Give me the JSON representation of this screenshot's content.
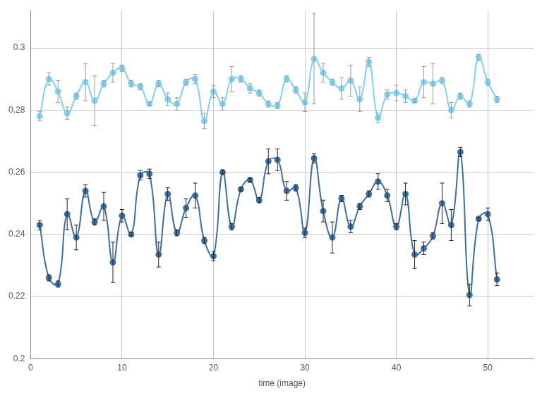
{
  "chart_data": {
    "type": "line",
    "x_label": "time (image)",
    "x": [
      1,
      2,
      3,
      4,
      5,
      6,
      7,
      8,
      9,
      10,
      11,
      12,
      13,
      14,
      15,
      16,
      17,
      18,
      19,
      20,
      21,
      22,
      23,
      24,
      25,
      26,
      27,
      28,
      29,
      30,
      31,
      32,
      33,
      34,
      35,
      36,
      37,
      38,
      39,
      40,
      41,
      42,
      43,
      44,
      45,
      46,
      47,
      48,
      49,
      50,
      51
    ],
    "series": [
      {
        "color": "#7fd2f2",
        "error_color": "#999999",
        "marker": "circle",
        "line_style": "solid",
        "values": [
          0.278,
          0.29,
          0.286,
          0.279,
          0.2845,
          0.289,
          0.283,
          0.2885,
          0.292,
          0.2935,
          0.2885,
          0.2875,
          0.282,
          0.2885,
          0.2835,
          0.282,
          0.289,
          0.29,
          0.2765,
          0.286,
          0.282,
          0.29,
          0.29,
          0.287,
          0.2855,
          0.282,
          0.2815,
          0.29,
          0.2865,
          0.2825,
          0.2965,
          0.292,
          0.289,
          0.287,
          0.2895,
          0.2835,
          0.2955,
          0.2775,
          0.285,
          0.2855,
          0.2845,
          0.283,
          0.289,
          0.2885,
          0.2895,
          0.28,
          0.2845,
          0.282,
          0.297,
          0.289,
          0.2835
        ],
        "error": [
          0.0015,
          0.002,
          0.0035,
          0.002,
          0.001,
          0.006,
          0.008,
          0.001,
          0.003,
          0.001,
          0.001,
          0.001,
          0.0005,
          0.001,
          0.002,
          0.002,
          0.001,
          0.0015,
          0.0025,
          0.002,
          0.002,
          0.004,
          0.001,
          0.0015,
          0.001,
          0.001,
          0.001,
          0.001,
          0.001,
          0.003,
          0.0145,
          0.003,
          0.001,
          0.0035,
          0.005,
          0.004,
          0.0015,
          0.0015,
          0.0015,
          0.0025,
          0.002,
          0.0005,
          0.005,
          0.0065,
          0.001,
          0.0025,
          0.001,
          0.001,
          0.001,
          0.001,
          0.001
        ]
      },
      {
        "color": "#3f6f9f",
        "error_color": "#222222",
        "marker": "circle",
        "line_style": "solid",
        "values": [
          0.243,
          0.226,
          0.224,
          0.2465,
          0.239,
          0.254,
          0.244,
          0.249,
          0.231,
          0.246,
          0.24,
          0.259,
          0.2595,
          0.2335,
          0.253,
          0.2405,
          0.2485,
          0.2525,
          0.238,
          0.233,
          0.26,
          0.2425,
          0.2545,
          0.2575,
          0.251,
          0.2635,
          0.264,
          0.254,
          0.255,
          0.2405,
          0.2645,
          0.2475,
          0.239,
          0.2515,
          0.2425,
          0.249,
          0.253,
          0.257,
          0.2525,
          0.2425,
          0.253,
          0.2335,
          0.2355,
          0.2395,
          0.25,
          0.243,
          0.2665,
          0.2205,
          0.245,
          0.2465,
          0.2255
        ],
        "error": [
          0.0015,
          0.001,
          0.001,
          0.005,
          0.004,
          0.002,
          0.001,
          0.0045,
          0.0065,
          0.002,
          0.0005,
          0.0015,
          0.0015,
          0.004,
          0.002,
          0.001,
          0.003,
          0.004,
          0.001,
          0.0015,
          0.0005,
          0.001,
          0.0005,
          0.0005,
          0.0008,
          0.004,
          0.0035,
          0.003,
          0.001,
          0.0015,
          0.0015,
          0.0035,
          0.005,
          0.001,
          0.002,
          0.001,
          0.001,
          0.0025,
          0.002,
          0.001,
          0.0035,
          0.0045,
          0.002,
          0.001,
          0.0065,
          0.005,
          0.0015,
          0.0035,
          0.0005,
          0.002,
          0.002
        ]
      }
    ],
    "xlim": [
      0,
      55
    ],
    "xticks": [
      0,
      10,
      20,
      30,
      40,
      50
    ],
    "ylim": [
      0.2,
      0.312
    ],
    "yticks": [
      0.2,
      0.22,
      0.24,
      0.26,
      0.28,
      0.3
    ],
    "grid": true
  }
}
